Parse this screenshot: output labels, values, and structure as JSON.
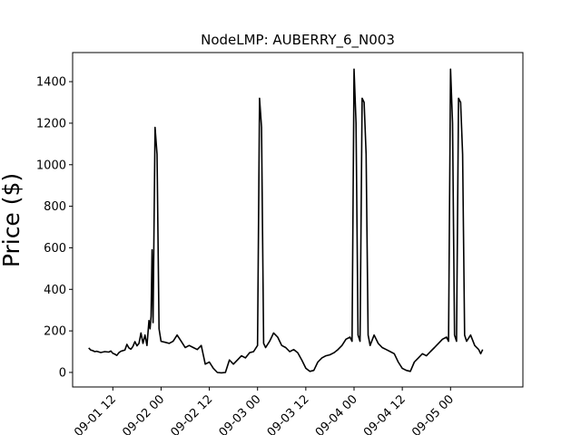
{
  "chart_data": {
    "type": "line",
    "title": "NodeLMP: AUBERRY_6_N003",
    "xlabel": "",
    "ylabel": "Price ($)",
    "xlim": [
      "2018-09-01 02:00",
      "2018-09-05 18:00"
    ],
    "ylim": [
      -70,
      1540
    ],
    "grid": false,
    "legend": "none",
    "line_color": "#000000",
    "x_ticks": [
      {
        "value": "2018-09-01 12:00",
        "label": "09-01 12"
      },
      {
        "value": "2018-09-02 00:00",
        "label": "09-02 00"
      },
      {
        "value": "2018-09-02 12:00",
        "label": "09-02 12"
      },
      {
        "value": "2018-09-03 00:00",
        "label": "09-03 00"
      },
      {
        "value": "2018-09-03 12:00",
        "label": "09-03 12"
      },
      {
        "value": "2018-09-04 00:00",
        "label": "09-04 00"
      },
      {
        "value": "2018-09-04 12:00",
        "label": "09-04 12"
      },
      {
        "value": "2018-09-05 00:00",
        "label": "09-05 00"
      }
    ],
    "y_ticks": [
      0,
      200,
      400,
      600,
      800,
      1000,
      1200,
      1400
    ],
    "series": [
      {
        "points": [
          [
            "2018-09-01 06:00",
            118
          ],
          [
            "2018-09-01 06:30",
            108
          ],
          [
            "2018-09-01 07:00",
            105
          ],
          [
            "2018-09-01 07:30",
            100
          ],
          [
            "2018-09-01 08:00",
            102
          ],
          [
            "2018-09-01 09:00",
            96
          ],
          [
            "2018-09-01 10:00",
            100
          ],
          [
            "2018-09-01 11:00",
            98
          ],
          [
            "2018-09-01 11:30",
            103
          ],
          [
            "2018-09-01 12:00",
            92
          ],
          [
            "2018-09-01 12:30",
            88
          ],
          [
            "2018-09-01 13:00",
            82
          ],
          [
            "2018-09-01 13:30",
            95
          ],
          [
            "2018-09-01 14:00",
            102
          ],
          [
            "2018-09-01 15:00",
            108
          ],
          [
            "2018-09-01 15:30",
            135
          ],
          [
            "2018-09-01 16:00",
            118
          ],
          [
            "2018-09-01 16:30",
            112
          ],
          [
            "2018-09-01 17:00",
            125
          ],
          [
            "2018-09-01 17:30",
            148
          ],
          [
            "2018-09-01 18:00",
            128
          ],
          [
            "2018-09-01 18:30",
            140
          ],
          [
            "2018-09-01 19:00",
            190
          ],
          [
            "2018-09-01 19:30",
            140
          ],
          [
            "2018-09-01 20:00",
            180
          ],
          [
            "2018-09-01 20:30",
            130
          ],
          [
            "2018-09-01 21:00",
            250
          ],
          [
            "2018-09-01 21:15",
            210
          ],
          [
            "2018-09-01 21:30",
            270
          ],
          [
            "2018-09-01 21:45",
            590
          ],
          [
            "2018-09-01 22:00",
            240
          ],
          [
            "2018-09-01 22:30",
            1180
          ],
          [
            "2018-09-01 23:00",
            1050
          ],
          [
            "2018-09-01 23:30",
            210
          ],
          [
            "2018-09-02 00:00",
            150
          ],
          [
            "2018-09-02 01:00",
            145
          ],
          [
            "2018-09-02 02:00",
            140
          ],
          [
            "2018-09-02 03:00",
            150
          ],
          [
            "2018-09-02 04:00",
            180
          ],
          [
            "2018-09-02 05:00",
            150
          ],
          [
            "2018-09-02 06:00",
            120
          ],
          [
            "2018-09-02 07:00",
            130
          ],
          [
            "2018-09-02 08:00",
            120
          ],
          [
            "2018-09-02 09:00",
            110
          ],
          [
            "2018-09-02 10:00",
            130
          ],
          [
            "2018-09-02 10:30",
            85
          ],
          [
            "2018-09-02 11:00",
            40
          ],
          [
            "2018-09-02 12:00",
            50
          ],
          [
            "2018-09-02 13:00",
            20
          ],
          [
            "2018-09-02 14:00",
            0
          ],
          [
            "2018-09-02 15:00",
            -2
          ],
          [
            "2018-09-02 16:00",
            0
          ],
          [
            "2018-09-02 17:00",
            60
          ],
          [
            "2018-09-02 18:00",
            40
          ],
          [
            "2018-09-02 19:00",
            60
          ],
          [
            "2018-09-02 20:00",
            80
          ],
          [
            "2018-09-02 21:00",
            70
          ],
          [
            "2018-09-02 22:00",
            95
          ],
          [
            "2018-09-02 23:00",
            100
          ],
          [
            "2018-09-03 00:00",
            130
          ],
          [
            "2018-09-03 00:30",
            1320
          ],
          [
            "2018-09-03 01:00",
            1180
          ],
          [
            "2018-09-03 01:30",
            140
          ],
          [
            "2018-09-03 02:00",
            120
          ],
          [
            "2018-09-03 03:00",
            150
          ],
          [
            "2018-09-03 04:00",
            190
          ],
          [
            "2018-09-03 05:00",
            170
          ],
          [
            "2018-09-03 06:00",
            130
          ],
          [
            "2018-09-03 07:00",
            120
          ],
          [
            "2018-09-03 08:00",
            100
          ],
          [
            "2018-09-03 09:00",
            110
          ],
          [
            "2018-09-03 10:00",
            95
          ],
          [
            "2018-09-03 11:00",
            60
          ],
          [
            "2018-09-03 12:00",
            20
          ],
          [
            "2018-09-03 13:00",
            5
          ],
          [
            "2018-09-03 14:00",
            10
          ],
          [
            "2018-09-03 15:00",
            50
          ],
          [
            "2018-09-03 16:00",
            70
          ],
          [
            "2018-09-03 17:00",
            80
          ],
          [
            "2018-09-03 18:00",
            85
          ],
          [
            "2018-09-03 19:00",
            95
          ],
          [
            "2018-09-03 20:00",
            110
          ],
          [
            "2018-09-03 21:00",
            130
          ],
          [
            "2018-09-03 22:00",
            160
          ],
          [
            "2018-09-03 23:00",
            170
          ],
          [
            "2018-09-03 23:30",
            150
          ],
          [
            "2018-09-04 00:00",
            1460
          ],
          [
            "2018-09-04 00:30",
            1200
          ],
          [
            "2018-09-04 01:00",
            180
          ],
          [
            "2018-09-04 01:30",
            150
          ],
          [
            "2018-09-04 02:00",
            1320
          ],
          [
            "2018-09-04 02:30",
            1300
          ],
          [
            "2018-09-04 03:00",
            1050
          ],
          [
            "2018-09-04 03:30",
            180
          ],
          [
            "2018-09-04 04:00",
            130
          ],
          [
            "2018-09-04 05:00",
            180
          ],
          [
            "2018-09-04 06:00",
            140
          ],
          [
            "2018-09-04 07:00",
            120
          ],
          [
            "2018-09-04 08:00",
            110
          ],
          [
            "2018-09-04 09:00",
            100
          ],
          [
            "2018-09-04 10:00",
            90
          ],
          [
            "2018-09-04 11:00",
            50
          ],
          [
            "2018-09-04 12:00",
            20
          ],
          [
            "2018-09-04 13:00",
            10
          ],
          [
            "2018-09-04 14:00",
            5
          ],
          [
            "2018-09-04 15:00",
            50
          ],
          [
            "2018-09-04 16:00",
            70
          ],
          [
            "2018-09-04 17:00",
            90
          ],
          [
            "2018-09-04 18:00",
            80
          ],
          [
            "2018-09-04 19:00",
            100
          ],
          [
            "2018-09-04 20:00",
            120
          ],
          [
            "2018-09-04 21:00",
            140
          ],
          [
            "2018-09-04 22:00",
            160
          ],
          [
            "2018-09-04 23:00",
            170
          ],
          [
            "2018-09-04 23:30",
            150
          ],
          [
            "2018-09-05 00:00",
            1460
          ],
          [
            "2018-09-05 00:30",
            1200
          ],
          [
            "2018-09-05 01:00",
            180
          ],
          [
            "2018-09-05 01:30",
            150
          ],
          [
            "2018-09-05 02:00",
            1320
          ],
          [
            "2018-09-05 02:30",
            1300
          ],
          [
            "2018-09-05 03:00",
            1050
          ],
          [
            "2018-09-05 03:30",
            180
          ],
          [
            "2018-09-05 04:00",
            150
          ],
          [
            "2018-09-05 05:00",
            180
          ],
          [
            "2018-09-05 06:00",
            130
          ],
          [
            "2018-09-05 07:00",
            110
          ],
          [
            "2018-09-05 07:30",
            90
          ],
          [
            "2018-09-05 08:00",
            110
          ]
        ]
      }
    ]
  }
}
